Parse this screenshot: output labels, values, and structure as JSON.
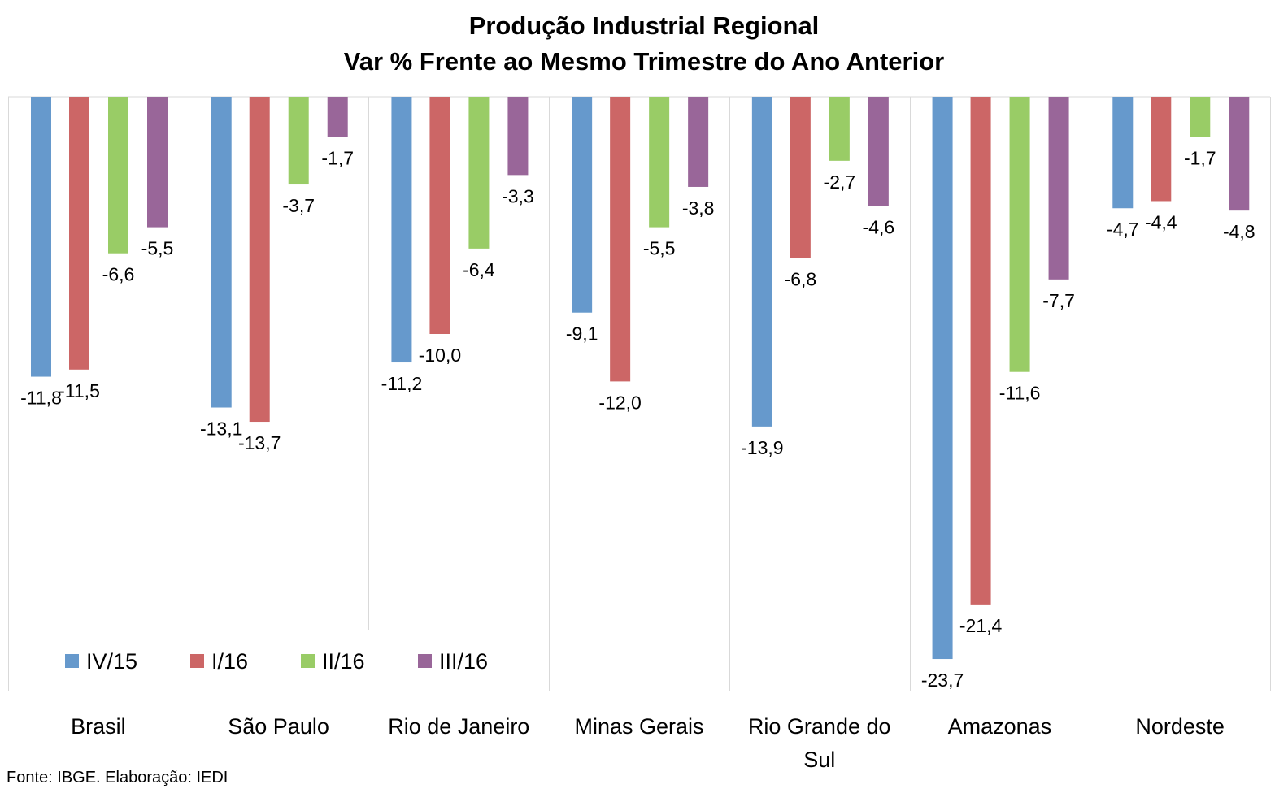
{
  "chart_data": {
    "type": "bar",
    "title": "Produção Industrial Regional",
    "subtitle": "Var % Frente ao Mesmo Trimestre do Ano Anterior",
    "categories": [
      "Brasil",
      "São Paulo",
      "Rio de Janeiro",
      "Minas Gerais",
      "Rio Grande do Sul",
      "Amazonas",
      "Nordeste"
    ],
    "series": [
      {
        "name": "IV/15",
        "color": "#6699CC",
        "values": [
          -11.8,
          -13.1,
          -11.2,
          -9.1,
          -13.9,
          -23.7,
          -4.7
        ]
      },
      {
        "name": "I/16",
        "color": "#CC6666",
        "values": [
          -11.5,
          -13.7,
          -10.0,
          -12.0,
          -6.8,
          -21.4,
          -4.4
        ]
      },
      {
        "name": "II/16",
        "color": "#99CC66",
        "values": [
          -6.6,
          -3.7,
          -6.4,
          -5.5,
          -2.7,
          -11.6,
          -1.7
        ]
      },
      {
        "name": "III/16",
        "color": "#996699",
        "values": [
          -5.5,
          -1.7,
          -3.3,
          -3.8,
          -4.6,
          -7.7,
          -4.8
        ]
      }
    ],
    "data_labels": [
      [
        "-11,8",
        "-13,1",
        "-11,2",
        "-9,1",
        "-13,9",
        "-23,7",
        "-4,7"
      ],
      [
        "-11,5",
        "-13,7",
        "-10,0",
        "-12,0",
        "-6,8",
        "-21,4",
        "-4,4"
      ],
      [
        "-6,6",
        "-3,7",
        "-6,4",
        "-5,5",
        "-2,7",
        "-11,6",
        "-1,7"
      ],
      [
        "-5,5",
        "-1,7",
        "-3,3",
        "-3,8",
        "-4,6",
        "-7,7",
        "-4,8"
      ]
    ],
    "category_label_lines": [
      [
        "Brasil"
      ],
      [
        "São Paulo"
      ],
      [
        "Rio de Janeiro"
      ],
      [
        "Minas Gerais"
      ],
      [
        "Rio Grande do",
        "Sul"
      ],
      [
        "Amazonas"
      ],
      [
        "Nordeste"
      ]
    ],
    "ylim": [
      -25,
      0
    ],
    "legend_position": "bottom-left, inside plot",
    "grid": "vertical category separators"
  },
  "source": "Fonte: IBGE. Elaboração: IEDI"
}
